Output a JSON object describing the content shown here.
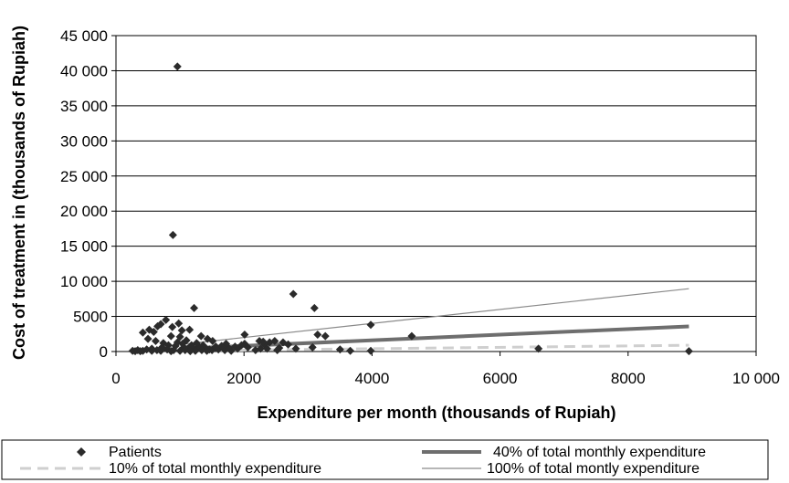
{
  "chart_data": {
    "type": "scatter",
    "xlabel": "Expenditure per month (thousands of Rupiah)",
    "ylabel": "Cost of treatment in (thousands of Rupiah)",
    "xlim": [
      0,
      10000
    ],
    "ylim": [
      0,
      45000
    ],
    "x_ticks": [
      0,
      2000,
      4000,
      6000,
      8000,
      10000
    ],
    "x_tick_labels": [
      "0",
      "2000",
      "4000",
      "6000",
      "8000",
      "10 000"
    ],
    "y_ticks": [
      0,
      5000,
      10000,
      15000,
      20000,
      25000,
      30000,
      35000,
      40000,
      45000
    ],
    "y_tick_labels": [
      "0",
      "5000",
      "10 000",
      "15 000",
      "20 000",
      "25 000",
      "30 000",
      "35 000",
      "40 000",
      "45 000"
    ],
    "grid": "horizontal",
    "legend_position": "bottom",
    "series": [
      {
        "name": "Patients",
        "kind": "points",
        "color": "#2b2b2b",
        "points": [
          [
            960,
            40600
          ],
          [
            890,
            16600
          ],
          [
            1220,
            6200
          ],
          [
            2770,
            8200
          ],
          [
            3100,
            6200
          ],
          [
            3980,
            3800
          ],
          [
            4620,
            2200
          ],
          [
            6600,
            400
          ],
          [
            8950,
            50
          ],
          [
            780,
            4500
          ],
          [
            650,
            3600
          ],
          [
            980,
            4000
          ],
          [
            700,
            3900
          ],
          [
            520,
            3100
          ],
          [
            590,
            2800
          ],
          [
            880,
            3500
          ],
          [
            1030,
            3000
          ],
          [
            1150,
            3100
          ],
          [
            1330,
            2200
          ],
          [
            1430,
            1800
          ],
          [
            1510,
            1500
          ],
          [
            1000,
            2100
          ],
          [
            860,
            2200
          ],
          [
            420,
            2700
          ],
          [
            500,
            1800
          ],
          [
            620,
            1500
          ],
          [
            740,
            1200
          ],
          [
            820,
            900
          ],
          [
            930,
            800
          ],
          [
            1060,
            600
          ],
          [
            1120,
            400
          ],
          [
            1220,
            300
          ],
          [
            1290,
            700
          ],
          [
            1400,
            500
          ],
          [
            1500,
            200
          ],
          [
            1600,
            300
          ],
          [
            1700,
            200
          ],
          [
            1800,
            100
          ],
          [
            1900,
            400
          ],
          [
            2010,
            2400
          ],
          [
            2010,
            1100
          ],
          [
            2060,
            600
          ],
          [
            1960,
            900
          ],
          [
            1750,
            600
          ],
          [
            2240,
            1500
          ],
          [
            2320,
            1000
          ],
          [
            2260,
            400
          ],
          [
            2400,
            1300
          ],
          [
            2480,
            1500
          ],
          [
            2550,
            500
          ],
          [
            2610,
            1300
          ],
          [
            2690,
            1000
          ],
          [
            2810,
            400
          ],
          [
            3070,
            600
          ],
          [
            3150,
            2400
          ],
          [
            3270,
            2200
          ],
          [
            3500,
            300
          ],
          [
            3660,
            100
          ],
          [
            3980,
            100
          ],
          [
            260,
            100
          ],
          [
            340,
            200
          ],
          [
            420,
            100
          ],
          [
            480,
            300
          ],
          [
            560,
            400
          ],
          [
            640,
            200
          ],
          [
            720,
            600
          ],
          [
            800,
            300
          ],
          [
            900,
            200
          ],
          [
            960,
            1300
          ],
          [
            1040,
            1100
          ],
          [
            1100,
            1600
          ],
          [
            1180,
            900
          ],
          [
            1260,
            1200
          ],
          [
            1360,
            900
          ],
          [
            1460,
            300
          ],
          [
            1560,
            700
          ],
          [
            1650,
            800
          ],
          [
            1720,
            1100
          ],
          [
            1860,
            700
          ],
          [
            2180,
            200
          ],
          [
            2360,
            400
          ],
          [
            2520,
            200
          ],
          [
            2300,
            1400
          ],
          [
            1240,
            100
          ],
          [
            1340,
            200
          ],
          [
            1420,
            100
          ],
          [
            300,
            50
          ],
          [
            380,
            50
          ],
          [
            560,
            100
          ],
          [
            700,
            100
          ],
          [
            860,
            50
          ],
          [
            1000,
            100
          ],
          [
            1080,
            200
          ],
          [
            1160,
            50
          ]
        ]
      },
      {
        "name": "40% of total monthly expenditure",
        "kind": "line",
        "color": "#6e6e6e",
        "points": [
          [
            1040,
            416
          ],
          [
            8950,
            3580
          ]
        ]
      },
      {
        "name": "10% of total monthly expenditure",
        "kind": "line",
        "color": "#cfcfcf",
        "points": [
          [
            1040,
            104
          ],
          [
            8950,
            895
          ]
        ]
      },
      {
        "name": "100% of total montly expenditure",
        "kind": "line",
        "color": "#8a8a8a",
        "points": [
          [
            1040,
            1040
          ],
          [
            8950,
            8950
          ]
        ]
      }
    ]
  }
}
